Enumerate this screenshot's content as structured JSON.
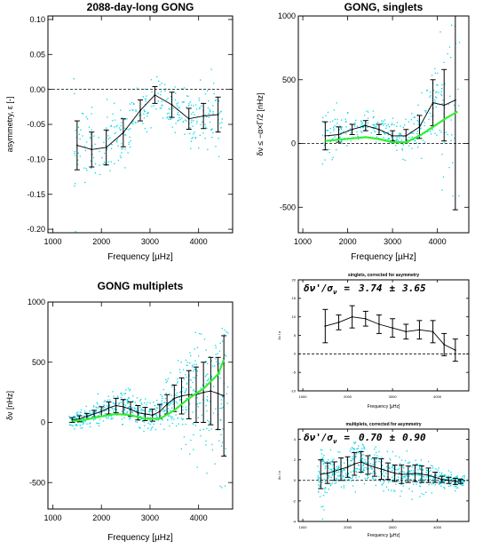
{
  "colors": {
    "scatter": "#00d8e8",
    "fit": "#33ee33",
    "line": "#000000"
  },
  "chart_data": [
    {
      "type": "scatter",
      "title": "2088-day-long GONG",
      "xlabel": "Frequency [µHz]",
      "ylabel": "asymmetry, ε [-]",
      "xlim": [
        900,
        4700
      ],
      "ylim": [
        -0.205,
        0.105
      ],
      "xticks": [
        1000,
        2000,
        3000,
        4000
      ],
      "yticks": [
        -0.2,
        -0.15,
        -0.1,
        -0.05,
        0.0,
        0.05,
        0.1
      ],
      "ytick_labels": [
        "-0.20",
        "-0.15",
        "-0.10",
        "-0.05",
        "0.00",
        "0.05",
        "0.10"
      ],
      "hline": 0,
      "scatter_density": 320,
      "series": [
        {
          "style": "errorbar",
          "x": [
            1500,
            1800,
            2100,
            2450,
            2800,
            3100,
            3450,
            3800,
            4100,
            4400
          ],
          "y": [
            -0.08,
            -0.086,
            -0.083,
            -0.062,
            -0.03,
            -0.008,
            -0.022,
            -0.042,
            -0.038,
            -0.036
          ],
          "err": [
            0.035,
            0.025,
            0.025,
            0.02,
            0.015,
            0.012,
            0.018,
            0.015,
            0.018,
            0.025
          ]
        }
      ]
    },
    {
      "type": "scatter",
      "title": "GONG, singlets",
      "xlabel": "Frequency [µHz]",
      "ylabel": "δν ≤ −α×Γ/2 [nHz]",
      "xlim": [
        900,
        4700
      ],
      "ylim": [
        -700,
        1000
      ],
      "xticks": [
        1000,
        2000,
        3000,
        4000
      ],
      "yticks": [
        -500,
        0,
        500,
        1000
      ],
      "ytick_labels": [
        "-500",
        "0",
        "500",
        "1000"
      ],
      "hline": 0,
      "scatter_density": 340,
      "series": [
        {
          "style": "errorbar",
          "x": [
            1500,
            1800,
            2100,
            2400,
            2700,
            3000,
            3300,
            3600,
            3900,
            4150,
            4400
          ],
          "y": [
            60,
            70,
            110,
            140,
            110,
            60,
            60,
            130,
            320,
            300,
            340
          ],
          "err": [
            110,
            60,
            40,
            40,
            40,
            40,
            50,
            90,
            180,
            280,
            860
          ]
        },
        {
          "style": "line",
          "color": "#33ee33",
          "x": [
            1500,
            1800,
            2100,
            2400,
            2700,
            3000,
            3300,
            3600,
            3900,
            4200,
            4450
          ],
          "y": [
            20,
            30,
            40,
            50,
            35,
            10,
            10,
            60,
            130,
            200,
            250
          ]
        }
      ]
    },
    {
      "type": "scatter",
      "title": "GONG multiplets",
      "xlabel": "Frequency [µHz]",
      "ylabel": "δν [nHz]",
      "xlim": [
        900,
        4700
      ],
      "ylim": [
        -720,
        1000
      ],
      "xticks": [
        1000,
        2000,
        3000,
        4000
      ],
      "yticks": [
        -500,
        0,
        500,
        1000
      ],
      "ytick_labels": [
        "-500",
        "0",
        "500",
        "1000"
      ],
      "scatter_density": 620,
      "series": [
        {
          "style": "errorbar",
          "x": [
            1400,
            1550,
            1700,
            1850,
            2000,
            2150,
            2300,
            2450,
            2600,
            2750,
            2900,
            3050,
            3200,
            3350,
            3500,
            3650,
            3800,
            3950,
            4100,
            4250,
            4400,
            4520
          ],
          "y": [
            20,
            30,
            50,
            70,
            90,
            120,
            140,
            130,
            110,
            80,
            70,
            60,
            90,
            150,
            200,
            220,
            230,
            230,
            250,
            260,
            240,
            220
          ],
          "err": [
            20,
            25,
            25,
            30,
            40,
            50,
            60,
            60,
            60,
            60,
            55,
            50,
            60,
            80,
            110,
            150,
            200,
            230,
            250,
            280,
            300,
            500
          ]
        },
        {
          "style": "line",
          "color": "#33ee33",
          "x": [
            1400,
            1700,
            2000,
            2300,
            2600,
            2900,
            3200,
            3500,
            3800,
            4100,
            4400,
            4520
          ],
          "y": [
            10,
            25,
            50,
            70,
            60,
            30,
            30,
            100,
            200,
            280,
            400,
            520
          ]
        }
      ]
    },
    {
      "type": "scatter",
      "title": "singlets, corrected for asymmetry",
      "xlabel": "Frequency [µHz]",
      "ylabel": "δν / σ",
      "annotation": {
        "lhs": "δν'/σ",
        "sub": "ν",
        "eq": "=",
        "value": "3.74",
        "pm": "±",
        "err": "3.65"
      },
      "xlim": [
        900,
        4700
      ],
      "ylim": [
        -10,
        20
      ],
      "xticks": [
        1000,
        2000,
        3000,
        4000
      ],
      "yticks": [
        -10,
        -5,
        0,
        5,
        10,
        15,
        20
      ],
      "ytick_labels": [
        "-10",
        "-5",
        "0",
        "5",
        "10",
        "15",
        "20"
      ],
      "hline": 0,
      "scatter_density": 0,
      "series": [
        {
          "style": "errorbar",
          "x": [
            1500,
            1800,
            2100,
            2400,
            2700,
            3000,
            3300,
            3600,
            3900,
            4150,
            4400
          ],
          "y": [
            7.5,
            8.5,
            10.0,
            9.5,
            8.0,
            7.0,
            6.0,
            6.5,
            6.0,
            2.5,
            1.0
          ],
          "err": [
            4.5,
            2.0,
            3.0,
            2.0,
            2.5,
            2.5,
            2.0,
            2.5,
            3.0,
            3.0,
            3.0
          ]
        }
      ]
    },
    {
      "type": "scatter",
      "title": "multiplets, corrected for asymmetry",
      "xlabel": "Frequency [µHz]",
      "ylabel": "δν / σ",
      "annotation": {
        "lhs": "δν'/σ",
        "sub": "ν",
        "eq": "=",
        "value": "0.70",
        "pm": "±",
        "err": "0.90"
      },
      "xlim": [
        900,
        4700
      ],
      "ylim": [
        -4,
        5
      ],
      "xticks": [
        1000,
        2000,
        3000,
        4000
      ],
      "yticks": [
        -4,
        -2,
        0,
        2,
        4
      ],
      "ytick_labels": [
        "-4",
        "-2",
        "0",
        "2",
        "4"
      ],
      "hline": 0,
      "scatter_density": 620,
      "series": [
        {
          "style": "errorbar",
          "x": [
            1400,
            1550,
            1700,
            1850,
            2000,
            2150,
            2300,
            2450,
            2600,
            2750,
            2900,
            3050,
            3200,
            3350,
            3500,
            3650,
            3800,
            3950,
            4100,
            4250,
            4400,
            4520
          ],
          "y": [
            0.6,
            0.7,
            0.9,
            1.1,
            1.3,
            1.6,
            1.8,
            1.5,
            1.3,
            1.1,
            0.9,
            0.7,
            0.6,
            0.6,
            0.7,
            0.6,
            0.5,
            0.3,
            0.1,
            0.0,
            -0.1,
            -0.1
          ],
          "err": [
            1.4,
            1.0,
            0.9,
            1.1,
            1.0,
            1.1,
            1.0,
            0.9,
            0.9,
            1.0,
            0.8,
            0.8,
            0.9,
            0.8,
            0.8,
            0.8,
            0.7,
            0.5,
            0.3,
            0.3,
            0.3,
            0.2
          ]
        }
      ]
    }
  ]
}
